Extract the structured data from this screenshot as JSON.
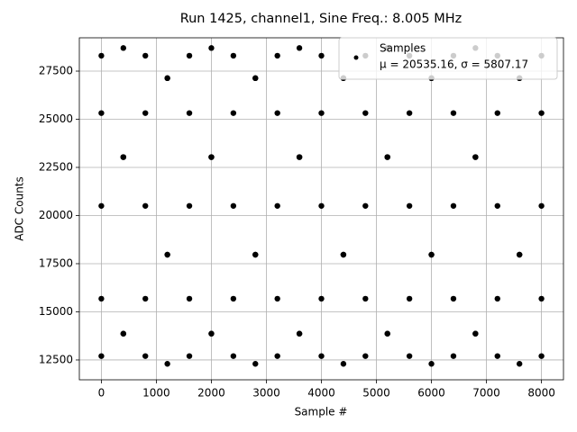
{
  "chart_data": {
    "type": "scatter",
    "title": "Run 1425, channel1, Sine Freq.: 8.005 MHz",
    "xlabel": "Sample #",
    "ylabel": "ADC Counts",
    "xlim": [
      -400,
      8400
    ],
    "ylim": [
      11470,
      29230
    ],
    "xticks": [
      0,
      1000,
      2000,
      3000,
      4000,
      5000,
      6000,
      7000,
      8000
    ],
    "yticks": [
      12500,
      15000,
      17500,
      20000,
      22500,
      25000,
      27500
    ],
    "grid": true,
    "legend": "upper right",
    "series": [
      {
        "name": "Samples",
        "legend_note": "μ = 20535.16, σ = 5807.17",
        "color": "#000000",
        "x": [
          0,
          400,
          800,
          1200,
          1600,
          2000,
          2400,
          2800,
          3200,
          3600,
          4000,
          4400,
          4800,
          5200,
          5600,
          6000,
          6400,
          6800,
          7200,
          7600,
          8000,
          0,
          400,
          800,
          1200,
          1600,
          2000,
          2400,
          2800,
          3200,
          3600,
          4000,
          4400,
          4800,
          5200,
          5600,
          6000,
          6400,
          6800,
          7200,
          7600,
          8000,
          0,
          400,
          800,
          1200,
          1600,
          2000,
          2400,
          2800,
          3200,
          3600,
          4000,
          4400,
          4800,
          5200,
          5600,
          6000,
          6400,
          6800,
          7200,
          7600,
          8000,
          0,
          400,
          800,
          1200,
          1600,
          2000,
          2400,
          2800,
          3200,
          3600,
          4000,
          4400,
          4800,
          5200,
          5600,
          6000,
          6400,
          6800,
          7200,
          7600,
          8000,
          0,
          400,
          800,
          1200,
          1600,
          2000,
          2400,
          2800,
          3200,
          3600,
          4000,
          4400,
          4800,
          5200,
          5600,
          6000,
          6400,
          6800,
          7200,
          7600,
          8000
        ],
        "values": [
          28299,
          28700,
          28299,
          27134,
          25320,
          23034,
          20500,
          17966,
          15680,
          13866,
          12701,
          12300,
          12701,
          13866,
          15680,
          17966,
          20500,
          23034,
          25320,
          27134,
          28299,
          20500,
          23034,
          25320,
          27134,
          28299,
          28700,
          28299,
          27134,
          25320,
          23034,
          20500,
          17966,
          15680,
          13866,
          12701,
          12300,
          12701,
          13866,
          15680,
          17966,
          20500,
          12701,
          13866,
          15680,
          17966,
          20500,
          23034,
          25320,
          27134,
          28299,
          28700,
          28299,
          27134,
          25320,
          23034,
          20500,
          17966,
          15680,
          13866,
          12701,
          12300,
          12701,
          15680,
          13866,
          12701,
          12300,
          12701,
          13866,
          15680,
          17966,
          20500,
          23034,
          25320,
          27134,
          28299,
          28700,
          28299,
          27134,
          25320,
          23034,
          20500,
          17966,
          15680,
          25320,
          23034,
          20500,
          17966,
          15680,
          13866,
          12701,
          12300,
          12701,
          13866,
          15680,
          17966,
          20500,
          23034,
          25320,
          27134,
          28299,
          28700,
          28299,
          27134,
          25320
        ]
      }
    ]
  }
}
